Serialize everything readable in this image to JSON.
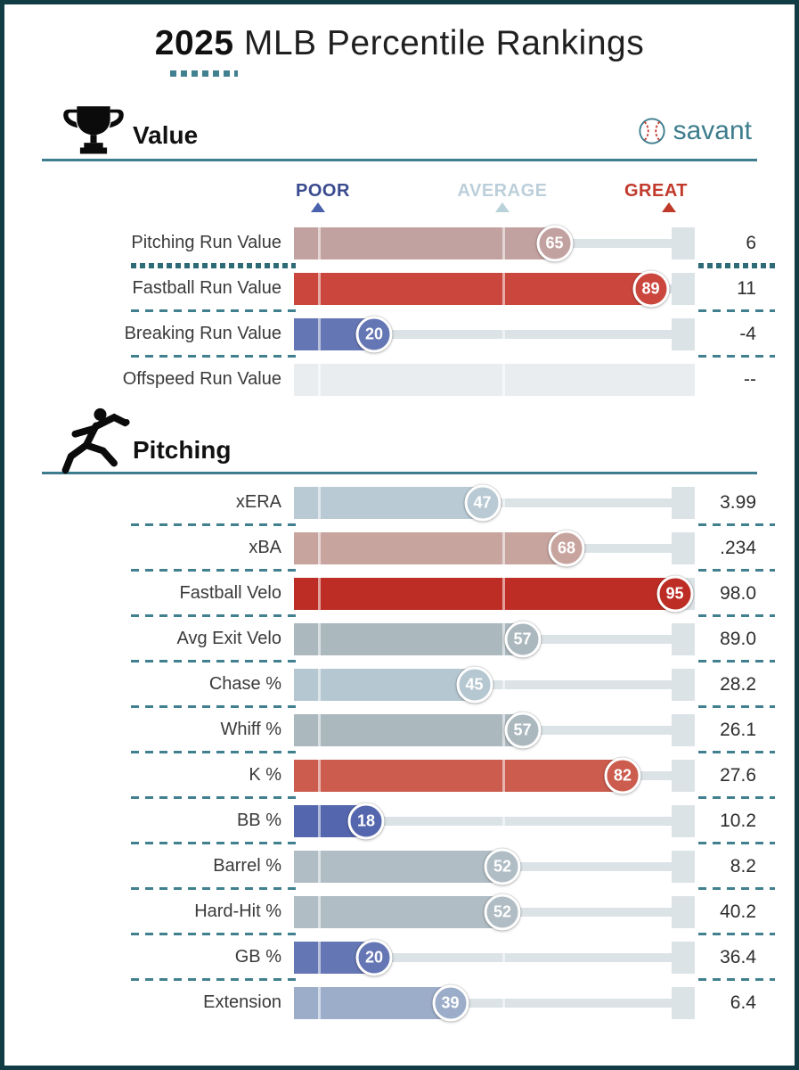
{
  "title": {
    "year": "2025",
    "rest": " MLB Percentile Rankings"
  },
  "brand": {
    "name": "savant"
  },
  "scale": {
    "poor": "POOR",
    "average": "AVERAGE",
    "great": "GREAT"
  },
  "colors": {
    "page_border": "#123c44",
    "rule_teal": "#3e7d8d",
    "brand_teal": "#3e7d8d",
    "title_dots": "#41808e",
    "sep_teal": "#41808e",
    "sep_teal_dark": "#2e6b77",
    "track": "#dce3e7",
    "no_data_fill": "#e9edf0",
    "tick": "rgba(255,255,255,0.55)",
    "poor": "#3a4a8f",
    "average": "#bccfda",
    "great": "#c13a2c",
    "poor_tri": "#4a62ab",
    "average_tri": "#b9d2da",
    "great_tri": "#c0392b"
  },
  "chart_data": [
    {
      "type": "bar",
      "orientation": "horizontal",
      "title": "Value",
      "xlim": [
        0,
        100
      ],
      "scale_labels": [
        "POOR",
        "AVERAGE",
        "GREAT"
      ],
      "rows": [
        {
          "label": "Pitching Run Value",
          "percentile": 65,
          "value": "6",
          "color": "#c2a2a0",
          "thick_separator": true
        },
        {
          "label": "Fastball Run Value",
          "percentile": 89,
          "value": "11",
          "color": "#cb473d"
        },
        {
          "label": "Breaking Run Value",
          "percentile": 20,
          "value": "-4",
          "color": "#6576b4"
        },
        {
          "label": "Offspeed Run Value",
          "percentile": null,
          "value": "--",
          "color": null
        }
      ]
    },
    {
      "type": "bar",
      "orientation": "horizontal",
      "title": "Pitching",
      "xlim": [
        0,
        100
      ],
      "rows": [
        {
          "label": "xERA",
          "percentile": 47,
          "value": "3.99",
          "color": "#b9cad4"
        },
        {
          "label": "xBA",
          "percentile": 68,
          "value": ".234",
          "color": "#c8a49f"
        },
        {
          "label": "Fastball Velo",
          "percentile": 95,
          "value": "98.0",
          "color": "#bd2d25"
        },
        {
          "label": "Avg Exit Velo",
          "percentile": 57,
          "value": "89.0",
          "color": "#abb8be"
        },
        {
          "label": "Chase %",
          "percentile": 45,
          "value": "28.2",
          "color": "#b5c7d1"
        },
        {
          "label": "Whiff %",
          "percentile": 57,
          "value": "26.1",
          "color": "#abb8be"
        },
        {
          "label": "K %",
          "percentile": 82,
          "value": "27.6",
          "color": "#cb5c4e"
        },
        {
          "label": "BB %",
          "percentile": 18,
          "value": "10.2",
          "color": "#5466ad"
        },
        {
          "label": "Barrel %",
          "percentile": 52,
          "value": "8.2",
          "color": "#b0bdc4"
        },
        {
          "label": "Hard-Hit %",
          "percentile": 52,
          "value": "40.2",
          "color": "#b0bdc4"
        },
        {
          "label": "GB %",
          "percentile": 20,
          "value": "36.4",
          "color": "#6576b4"
        },
        {
          "label": "Extension",
          "percentile": 39,
          "value": "6.4",
          "color": "#9cadc9"
        }
      ]
    }
  ]
}
